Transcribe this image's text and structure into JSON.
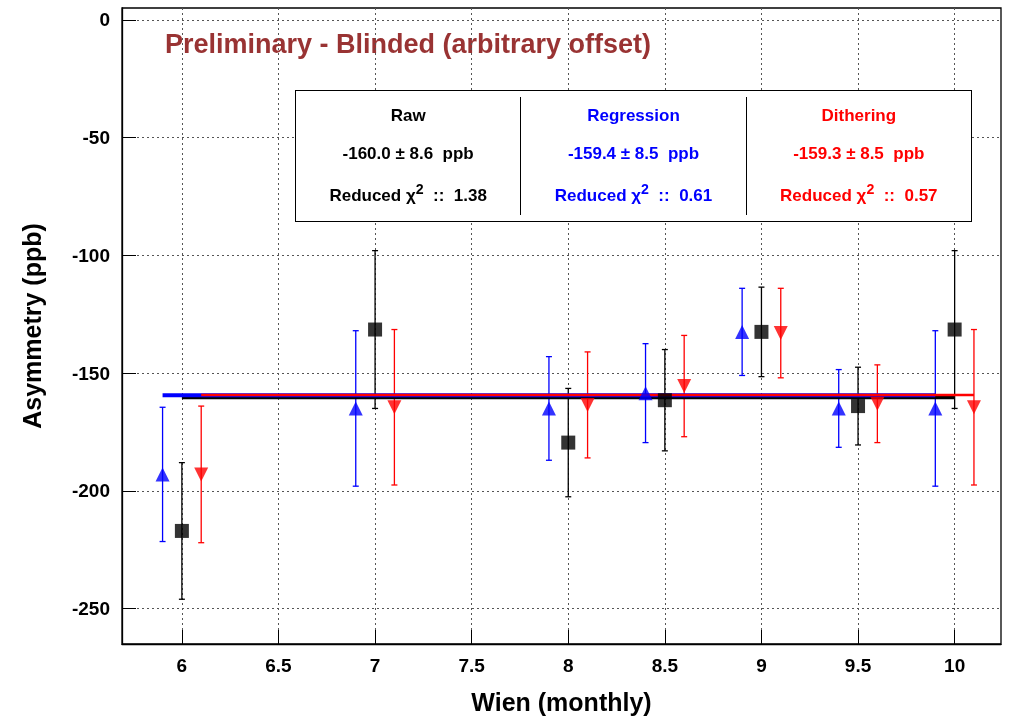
{
  "chart_data": {
    "type": "scatter",
    "title": "Preliminary - Blinded (arbitrary offset)",
    "xlabel": "Wien (monthly)",
    "ylabel": "Asymmetry (ppb)",
    "xlim": [
      5.69,
      10.24
    ],
    "xticks": [
      6,
      6.5,
      7,
      7.5,
      8,
      8.5,
      9,
      9.5,
      10
    ],
    "ylim": [
      -265,
      5
    ],
    "yticks": [
      0,
      -50,
      -100,
      -150,
      -200,
      -250
    ],
    "grid": true,
    "legend": "top",
    "annotations": [
      "-160.0 ± 8.6  ppb",
      "Reduced χ$^{2}$  ::  1.38",
      "-159.4 ± 8.5  ppb",
      "Reduced χ$^{2}$  ::  0.61",
      "-159.3 ± 8.5  ppb",
      "Reduced χ$^{2}$  ::  0.57"
    ],
    "series": [
      {
        "name": "Raw",
        "color": "#000000",
        "marker": "square",
        "x": [
          6,
          7,
          8,
          8.5,
          9,
          9.5,
          10
        ],
        "values": [
          -217,
          -131.5,
          -179.5,
          -161.5,
          -132.5,
          -164,
          -131.5
        ],
        "errors": [
          29,
          33.5,
          23,
          21.5,
          19,
          16.5,
          33.5
        ]
      },
      {
        "name": "Regression",
        "color": "#0000ff",
        "marker": "triangle",
        "x": [
          5.9,
          6.9,
          7.9,
          8.4,
          8.9,
          9.4,
          9.9
        ],
        "values": [
          -193,
          -165,
          -165,
          -158.5,
          -132.5,
          -165,
          -165
        ],
        "errors": [
          28.5,
          33,
          22,
          21,
          18.5,
          16.5,
          33
        ]
      },
      {
        "name": "Dithering",
        "color": "#ff0000",
        "marker": "triangle-down",
        "x": [
          6.1,
          7.1,
          8.1,
          8.6,
          9.1,
          9.6,
          10.1
        ],
        "values": [
          -193,
          -164.5,
          -163.5,
          -155.5,
          -133,
          -163,
          -164.5
        ],
        "errors": [
          29,
          33,
          22.5,
          21.5,
          19,
          16.5,
          33
        ]
      },
      {
        "type": "line",
        "color": "#000000",
        "x": [
          6,
          10
        ],
        "values": [
          -160.0,
          -160.0
        ]
      },
      {
        "type": "line",
        "color": "#0000ff",
        "x": [
          5.9,
          9.9
        ],
        "values": [
          -159.4,
          -159.4
        ]
      },
      {
        "type": "line",
        "color": "#ff0000",
        "x": [
          6.1,
          10.1
        ],
        "values": [
          -159.3,
          -159.3
        ]
      }
    ]
  }
}
